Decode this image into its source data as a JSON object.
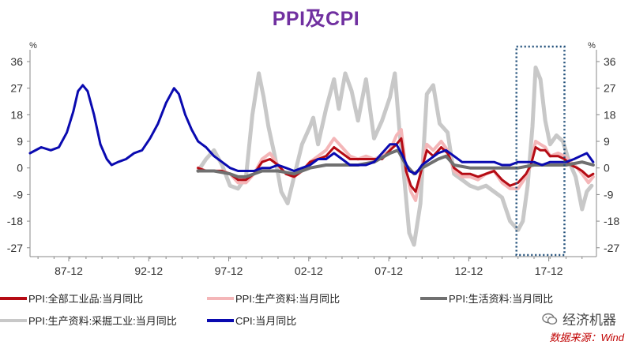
{
  "title": "PPI及CPI",
  "left_unit": "%",
  "right_unit": "%",
  "watermark": "经济机器",
  "source": "数据来源：Wind",
  "chart_data": {
    "type": "line",
    "title": "PPI及CPI",
    "xlabel": "",
    "ylabel": "%",
    "ylim": [
      -30,
      40
    ],
    "yticks": [
      36,
      27,
      18,
      9,
      0,
      -9,
      -18,
      -27
    ],
    "ytick_labels": [
      "36",
      "27",
      "18",
      "9",
      "0",
      "-9",
      "-18",
      "-27"
    ],
    "xlim": [
      1985.5,
      2020.9
    ],
    "xticks": [
      1987.92,
      1992.92,
      1997.92,
      2002.92,
      2007.92,
      2012.92,
      2017.92
    ],
    "xtick_labels": [
      "87-12",
      "92-12",
      "97-12",
      "02-12",
      "07-12",
      "12-12",
      "17-12"
    ],
    "grid": false,
    "legend_position": "bottom",
    "highlight_box": {
      "x": [
        2015.9,
        2018.9
      ],
      "y": [
        -30,
        40
      ],
      "style": "dotted",
      "color": "#1f4e79"
    },
    "series": [
      {
        "name": "PPI:生产资料:采掘工业:当月同比",
        "color": "#c8c8c8",
        "width": 5,
        "x": [
          1996.0,
          1996.5,
          1997.0,
          1997.5,
          1998.0,
          1998.5,
          1999.0,
          1999.4,
          1999.8,
          2000.1,
          2000.4,
          2000.8,
          2001.2,
          2001.6,
          2002.0,
          2002.5,
          2003.0,
          2003.2,
          2003.5,
          2004.0,
          2004.5,
          2004.8,
          2005.2,
          2005.6,
          2006.0,
          2006.5,
          2007.0,
          2007.5,
          2008.0,
          2008.3,
          2008.6,
          2008.9,
          2009.2,
          2009.5,
          2009.9,
          2010.3,
          2010.7,
          2011.1,
          2011.6,
          2012.0,
          2012.5,
          2013.0,
          2013.5,
          2014.0,
          2014.5,
          2015.0,
          2015.5,
          2016.0,
          2016.3,
          2016.6,
          2016.9,
          2017.1,
          2017.4,
          2017.7,
          2018.0,
          2018.4,
          2018.8,
          2019.2,
          2019.6,
          2020.0,
          2020.3,
          2020.6
        ],
        "y": [
          -1,
          3,
          6,
          1,
          -6,
          -7,
          -3,
          18,
          32,
          24,
          14,
          4,
          -8,
          -12,
          -3,
          8,
          14,
          17,
          8,
          20,
          30,
          20,
          32,
          26,
          16,
          30,
          10,
          16,
          24,
          32,
          12,
          -4,
          -22,
          -26,
          -12,
          25,
          28,
          15,
          12,
          -2,
          -4,
          -6,
          -7,
          -6,
          -8,
          -10,
          -18,
          -21,
          -18,
          -6,
          14,
          34,
          30,
          16,
          8,
          11,
          9,
          2,
          -3,
          -14,
          -8,
          -6
        ]
      },
      {
        "name": "PPI:生产资料:当月同比",
        "color": "#f4b6b8",
        "width": 4,
        "x": [
          1996.0,
          1996.5,
          1997.0,
          1997.5,
          1998.0,
          1998.5,
          1999.0,
          1999.5,
          2000.0,
          2000.5,
          2001.0,
          2001.5,
          2002.0,
          2002.5,
          2003.0,
          2003.5,
          2004.0,
          2004.5,
          2005.0,
          2005.5,
          2006.0,
          2006.5,
          2007.0,
          2007.5,
          2008.0,
          2008.4,
          2008.7,
          2009.0,
          2009.3,
          2009.6,
          2009.9,
          2010.3,
          2010.7,
          2011.2,
          2011.6,
          2012.0,
          2012.5,
          2013.0,
          2013.5,
          2014.0,
          2014.5,
          2015.0,
          2015.5,
          2016.0,
          2016.5,
          2016.8,
          2017.1,
          2017.4,
          2017.7,
          2018.0,
          2018.5,
          2018.9,
          2019.3,
          2019.7,
          2020.0,
          2020.4,
          2020.7
        ],
        "y": [
          0,
          -1,
          -1,
          -1,
          -2,
          -5,
          -5,
          -2,
          3,
          5,
          1,
          -2,
          -3,
          -1,
          2,
          4,
          6,
          10,
          7,
          4,
          3,
          4,
          3,
          4,
          6,
          11,
          13,
          -1,
          -8,
          -11,
          -2,
          8,
          6,
          9,
          6,
          -1,
          -3,
          -3,
          -4,
          -2,
          -1,
          -5,
          -7,
          -7,
          -3,
          1,
          9,
          8,
          7,
          4,
          5,
          4,
          2,
          0,
          -2,
          -5,
          -3
        ]
      },
      {
        "name": "PPI:全部工业品:当月同比",
        "color": "#b50b14",
        "width": 3,
        "x": [
          1996.0,
          1996.5,
          1997.0,
          1997.5,
          1998.0,
          1998.5,
          1999.0,
          1999.5,
          2000.0,
          2000.5,
          2001.0,
          2001.5,
          2002.0,
          2002.5,
          2003.0,
          2003.5,
          2004.0,
          2004.5,
          2005.0,
          2005.5,
          2006.0,
          2006.5,
          2007.0,
          2007.5,
          2008.0,
          2008.4,
          2008.7,
          2009.0,
          2009.3,
          2009.6,
          2009.9,
          2010.3,
          2010.7,
          2011.2,
          2011.6,
          2012.0,
          2012.5,
          2013.0,
          2013.5,
          2014.0,
          2014.5,
          2015.0,
          2015.5,
          2016.0,
          2016.5,
          2016.8,
          2017.1,
          2017.4,
          2017.7,
          2018.0,
          2018.5,
          2018.9,
          2019.3,
          2019.7,
          2020.0,
          2020.4,
          2020.7
        ],
        "y": [
          0,
          -1,
          -1,
          -1,
          -2,
          -4,
          -4,
          -2,
          2,
          3,
          1,
          -2,
          -3,
          -1,
          2,
          3,
          4,
          7,
          5,
          3,
          3,
          3,
          3,
          3,
          6,
          8,
          10,
          -1,
          -6,
          -8,
          -2,
          6,
          4,
          7,
          5,
          0,
          -2,
          -2,
          -3,
          -2,
          -1,
          -4,
          -6,
          -5,
          -2,
          1,
          7,
          6,
          6,
          4,
          4,
          3,
          1,
          0,
          -1,
          -3,
          -2
        ]
      },
      {
        "name": "PPI:生活资料:当月同比",
        "color": "#707070",
        "width": 4,
        "x": [
          1996.0,
          1997.0,
          1998.0,
          1998.5,
          1999.0,
          1999.5,
          2000.0,
          2001.0,
          2002.0,
          2003.0,
          2004.0,
          2005.0,
          2006.0,
          2007.0,
          2008.0,
          2008.5,
          2009.0,
          2009.5,
          2010.0,
          2011.0,
          2011.5,
          2012.0,
          2013.0,
          2014.0,
          2015.0,
          2016.0,
          2017.0,
          2018.0,
          2019.0,
          2020.0,
          2020.7
        ],
        "y": [
          -1,
          -1,
          -2,
          -3,
          -3,
          -2,
          -1,
          -1,
          -2,
          0,
          1,
          1,
          1,
          2,
          5,
          6,
          1,
          -2,
          0,
          3,
          4,
          1,
          0,
          0,
          0,
          0,
          1,
          1,
          1,
          2,
          1
        ]
      },
      {
        "name": "CPI:当月同比",
        "color": "#0a0ab0",
        "width": 3,
        "x": [
          1985.5,
          1986.2,
          1986.8,
          1987.3,
          1987.8,
          1988.2,
          1988.5,
          1988.8,
          1989.1,
          1989.5,
          1989.9,
          1990.3,
          1990.6,
          1991.0,
          1991.5,
          1992.0,
          1992.5,
          1993.0,
          1993.5,
          1994.0,
          1994.5,
          1994.8,
          1995.2,
          1995.6,
          1996.0,
          1996.5,
          1997.0,
          1997.5,
          1998.0,
          1998.5,
          1999.0,
          1999.5,
          2000.0,
          2000.5,
          2001.0,
          2001.5,
          2002.0,
          2002.5,
          2003.0,
          2003.5,
          2004.0,
          2004.5,
          2005.0,
          2005.5,
          2006.0,
          2006.5,
          2007.0,
          2007.5,
          2008.0,
          2008.4,
          2008.8,
          2009.2,
          2009.6,
          2010.0,
          2010.5,
          2011.0,
          2011.5,
          2012.0,
          2012.5,
          2013.0,
          2013.5,
          2014.0,
          2014.5,
          2015.0,
          2015.5,
          2016.0,
          2016.5,
          2017.0,
          2017.5,
          2018.0,
          2018.5,
          2019.0,
          2019.5,
          2019.9,
          2020.3,
          2020.7
        ],
        "y": [
          5,
          7,
          6,
          7,
          12,
          19,
          26,
          28,
          26,
          18,
          8,
          3,
          1,
          2,
          3,
          5,
          6,
          10,
          15,
          22,
          27,
          25,
          18,
          13,
          9,
          7,
          4,
          2,
          0,
          -1,
          -1,
          -1,
          0,
          0,
          1,
          0,
          -1,
          0,
          1,
          3,
          3,
          5,
          3,
          1,
          1,
          1,
          2,
          5,
          8,
          8,
          4,
          -1,
          -2,
          1,
          3,
          5,
          6,
          4,
          2,
          2,
          2,
          2,
          2,
          1,
          1,
          2,
          2,
          2,
          1,
          2,
          2,
          2,
          3,
          4,
          5,
          2
        ]
      }
    ]
  },
  "legend": [
    {
      "label": "PPI:全部工业品:当月同比",
      "color": "#b50b14"
    },
    {
      "label": "PPI:生产资料:当月同比",
      "color": "#f4b6b8"
    },
    {
      "label": "PPI:生活资料:当月同比",
      "color": "#707070"
    },
    {
      "label": "PPI:生产资料:采掘工业:当月同比",
      "color": "#c8c8c8"
    },
    {
      "label": "CPI:当月同比",
      "color": "#0a0ab0"
    }
  ]
}
